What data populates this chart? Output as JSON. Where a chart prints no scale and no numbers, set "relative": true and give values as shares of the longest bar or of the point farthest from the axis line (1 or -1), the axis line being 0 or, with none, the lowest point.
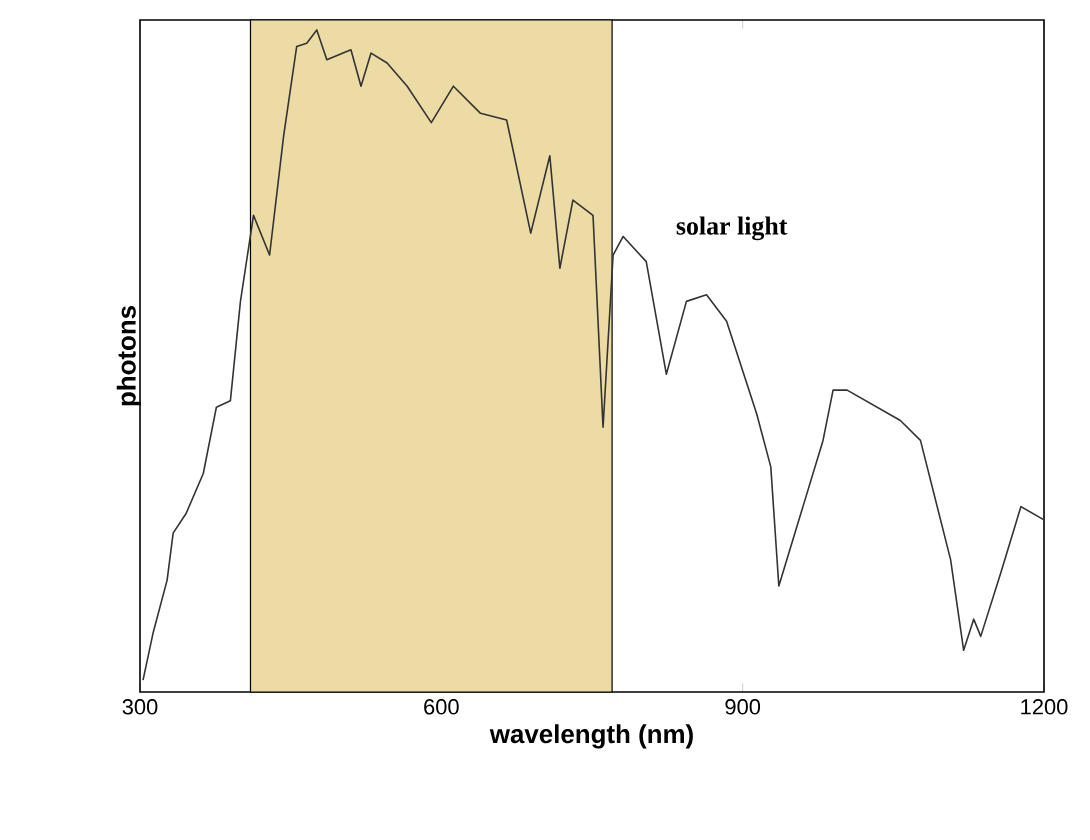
{
  "chart_data": {
    "type": "line",
    "xlabel": "wavelength (nm)",
    "ylabel": "photons",
    "relative": true,
    "xlim": [
      300,
      1200
    ],
    "xticks": [
      300,
      600,
      900,
      1200
    ],
    "bands": [
      {
        "axis": "x",
        "from": 410,
        "to": 770,
        "color": "#ecdba5"
      }
    ],
    "series": [
      {
        "name": "solar light",
        "color": "#333333",
        "x": [
          303,
          313,
          327,
          333,
          346,
          363,
          376,
          390,
          400,
          413,
          429,
          443,
          456,
          466,
          476,
          486,
          510,
          520,
          530,
          546,
          566,
          590,
          612,
          639,
          665,
          689,
          708,
          718,
          731,
          751,
          761,
          771,
          781,
          804,
          824,
          844,
          864,
          884,
          914,
          928,
          936,
          960,
          980,
          990,
          1004,
          1057,
          1077,
          1107,
          1120,
          1130,
          1137,
          1157,
          1177,
          1200
        ],
        "values": [
          0.018,
          0.089,
          0.169,
          0.24,
          0.27,
          0.33,
          0.43,
          0.44,
          0.59,
          0.72,
          0.66,
          0.84,
          0.975,
          0.98,
          1.0,
          0.955,
          0.97,
          0.915,
          0.965,
          0.95,
          0.915,
          0.86,
          0.915,
          0.874,
          0.864,
          0.693,
          0.81,
          0.64,
          0.743,
          0.72,
          0.4,
          0.66,
          0.688,
          0.65,
          0.48,
          0.59,
          0.6,
          0.56,
          0.42,
          0.34,
          0.16,
          0.28,
          0.38,
          0.456,
          0.456,
          0.41,
          0.38,
          0.2,
          0.063,
          0.11,
          0.084,
          0.18,
          0.28,
          0.26
        ]
      }
    ]
  }
}
